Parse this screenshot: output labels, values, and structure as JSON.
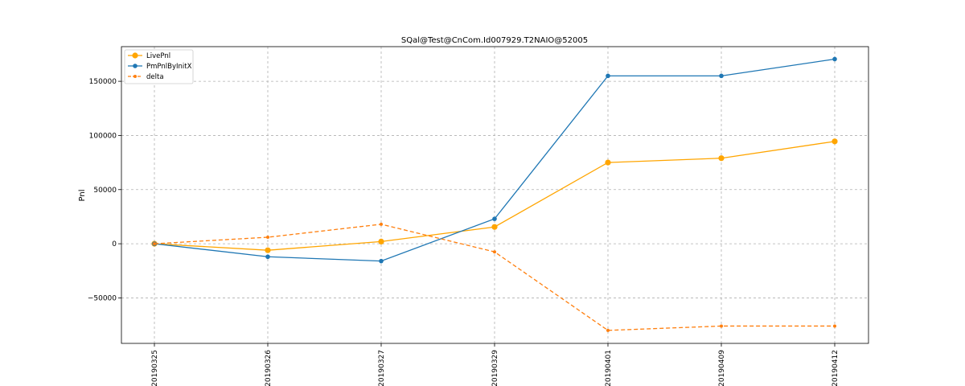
{
  "chart_data": {
    "type": "line",
    "title": "SQal@Test@CnCom.Id007929.T2NAIO@52005",
    "xlabel": "",
    "ylabel": "Pnl",
    "categories": [
      "20190325",
      "20190326",
      "20190327",
      "20190329",
      "20190401",
      "20190409",
      "20190412"
    ],
    "ylim": [
      -92000,
      182000
    ],
    "yticks": [
      -50000,
      0,
      50000,
      100000,
      150000
    ],
    "ytick_labels": [
      "−50000",
      "0",
      "50000",
      "100000",
      "150000"
    ],
    "grid": true,
    "legend_position": "top-left",
    "series": [
      {
        "name": "LivePnl",
        "color": "#ffa500",
        "line_style": "solid",
        "marker": "large-circle",
        "values": [
          0,
          -6000,
          2000,
          15500,
          75000,
          79000,
          94500
        ]
      },
      {
        "name": "PmPnlByInitX",
        "color": "#1f77b4",
        "line_style": "solid",
        "marker": "circle",
        "values": [
          0,
          -12000,
          -16000,
          23000,
          155000,
          155000,
          170500
        ]
      },
      {
        "name": "delta",
        "color": "#ff7f0e",
        "line_style": "dashed",
        "marker": "small-circle",
        "values": [
          0,
          6000,
          18000,
          -7500,
          -80000,
          -76000,
          -76000
        ]
      }
    ]
  }
}
